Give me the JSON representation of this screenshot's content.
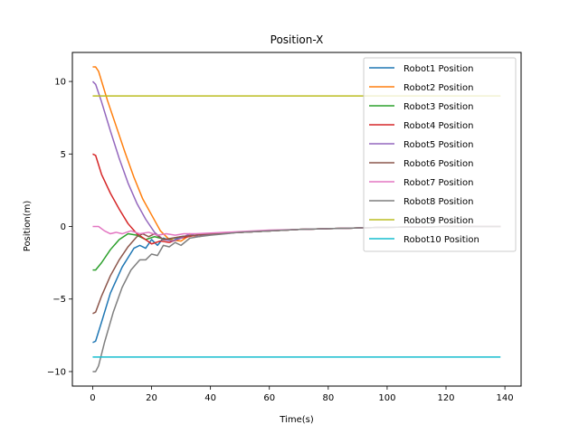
{
  "chart_data": {
    "type": "line",
    "title": "Position-X",
    "xlabel": "Time(s)",
    "ylabel": "Position(m)",
    "xlim": [
      -6.9,
      145.5
    ],
    "ylim": [
      -11,
      12
    ],
    "xticks": [
      0,
      20,
      40,
      60,
      80,
      100,
      120,
      140
    ],
    "yticks": [
      -10,
      -5,
      0,
      5,
      10
    ],
    "grid": false,
    "legend_position": "top-right",
    "series": [
      {
        "name": "Robot1 Position",
        "color": "#1f77b4",
        "points": [
          [
            0,
            -8
          ],
          [
            1,
            -7.9
          ],
          [
            3,
            -6.6
          ],
          [
            6,
            -4.6
          ],
          [
            10,
            -2.8
          ],
          [
            14,
            -1.5
          ],
          [
            16,
            -1.3
          ],
          [
            18,
            -1.5
          ],
          [
            20,
            -0.9
          ],
          [
            22,
            -1.3
          ],
          [
            24,
            -0.8
          ],
          [
            27,
            -1.0
          ],
          [
            30,
            -0.7
          ],
          [
            35,
            -0.6
          ],
          [
            40,
            -0.5
          ],
          [
            50,
            -0.4
          ],
          [
            60,
            -0.3
          ],
          [
            70,
            -0.2
          ],
          [
            80,
            -0.15
          ],
          [
            90,
            -0.1
          ],
          [
            100,
            -0.05
          ],
          [
            110,
            -0.03
          ],
          [
            120,
            -0.01
          ],
          [
            138.5,
            0
          ]
        ]
      },
      {
        "name": "Robot2 Position",
        "color": "#ff7f0e",
        "points": [
          [
            0,
            11
          ],
          [
            1,
            11
          ],
          [
            2,
            10.7
          ],
          [
            5,
            8.7
          ],
          [
            8,
            6.9
          ],
          [
            11,
            5.1
          ],
          [
            14,
            3.4
          ],
          [
            17,
            1.9
          ],
          [
            20,
            0.8
          ],
          [
            23,
            -0.3
          ],
          [
            26,
            -0.9
          ],
          [
            30,
            -1.0
          ],
          [
            33,
            -0.6
          ],
          [
            36,
            -0.7
          ],
          [
            40,
            -0.5
          ],
          [
            50,
            -0.4
          ],
          [
            60,
            -0.3
          ],
          [
            70,
            -0.2
          ],
          [
            80,
            -0.15
          ],
          [
            90,
            -0.1
          ],
          [
            100,
            -0.05
          ],
          [
            110,
            -0.03
          ],
          [
            120,
            -0.01
          ],
          [
            138.5,
            0
          ]
        ]
      },
      {
        "name": "Robot3 Position",
        "color": "#2ca02c",
        "points": [
          [
            0,
            -3
          ],
          [
            1,
            -3
          ],
          [
            3,
            -2.5
          ],
          [
            6,
            -1.6
          ],
          [
            9,
            -0.9
          ],
          [
            12,
            -0.5
          ],
          [
            15,
            -0.6
          ],
          [
            18,
            -0.9
          ],
          [
            21,
            -0.7
          ],
          [
            25,
            -0.9
          ],
          [
            30,
            -0.7
          ],
          [
            35,
            -0.6
          ],
          [
            40,
            -0.5
          ],
          [
            50,
            -0.4
          ],
          [
            60,
            -0.3
          ],
          [
            70,
            -0.2
          ],
          [
            80,
            -0.15
          ],
          [
            90,
            -0.1
          ],
          [
            100,
            -0.05
          ],
          [
            110,
            -0.03
          ],
          [
            120,
            -0.01
          ],
          [
            138.5,
            0
          ]
        ]
      },
      {
        "name": "Robot4 Position",
        "color": "#d62728",
        "points": [
          [
            0,
            5
          ],
          [
            1,
            4.9
          ],
          [
            3,
            3.6
          ],
          [
            6,
            2.3
          ],
          [
            9,
            1.2
          ],
          [
            12,
            0.2
          ],
          [
            15,
            -0.5
          ],
          [
            18,
            -0.9
          ],
          [
            20,
            -1.2
          ],
          [
            23,
            -1.0
          ],
          [
            26,
            -1.1
          ],
          [
            30,
            -0.8
          ],
          [
            35,
            -0.6
          ],
          [
            40,
            -0.5
          ],
          [
            50,
            -0.4
          ],
          [
            60,
            -0.3
          ],
          [
            70,
            -0.2
          ],
          [
            80,
            -0.15
          ],
          [
            90,
            -0.1
          ],
          [
            100,
            -0.05
          ],
          [
            110,
            -0.03
          ],
          [
            120,
            -0.01
          ],
          [
            138.5,
            0
          ]
        ]
      },
      {
        "name": "Robot5 Position",
        "color": "#9467bd",
        "points": [
          [
            0,
            10
          ],
          [
            1,
            9.8
          ],
          [
            3,
            8.6
          ],
          [
            6,
            6.6
          ],
          [
            9,
            4.7
          ],
          [
            12,
            3.0
          ],
          [
            15,
            1.6
          ],
          [
            18,
            0.5
          ],
          [
            21,
            -0.4
          ],
          [
            24,
            -0.9
          ],
          [
            27,
            -1.0
          ],
          [
            30,
            -0.8
          ],
          [
            33,
            -0.5
          ],
          [
            36,
            -0.7
          ],
          [
            40,
            -0.5
          ],
          [
            50,
            -0.4
          ],
          [
            60,
            -0.3
          ],
          [
            70,
            -0.2
          ],
          [
            80,
            -0.15
          ],
          [
            90,
            -0.1
          ],
          [
            100,
            -0.05
          ],
          [
            110,
            -0.03
          ],
          [
            120,
            -0.01
          ],
          [
            138.5,
            0
          ]
        ]
      },
      {
        "name": "Robot6 Position",
        "color": "#8c564b",
        "points": [
          [
            0,
            -6
          ],
          [
            1,
            -5.9
          ],
          [
            3,
            -4.8
          ],
          [
            6,
            -3.4
          ],
          [
            9,
            -2.3
          ],
          [
            12,
            -1.4
          ],
          [
            15,
            -0.7
          ],
          [
            17,
            -0.5
          ],
          [
            19,
            -0.7
          ],
          [
            21,
            -0.5
          ],
          [
            24,
            -0.9
          ],
          [
            27,
            -0.8
          ],
          [
            30,
            -0.7
          ],
          [
            35,
            -0.6
          ],
          [
            40,
            -0.5
          ],
          [
            50,
            -0.4
          ],
          [
            60,
            -0.3
          ],
          [
            70,
            -0.2
          ],
          [
            80,
            -0.15
          ],
          [
            90,
            -0.1
          ],
          [
            100,
            -0.05
          ],
          [
            110,
            -0.03
          ],
          [
            120,
            -0.01
          ],
          [
            138.5,
            0
          ]
        ]
      },
      {
        "name": "Robot7 Position",
        "color": "#e377c2",
        "points": [
          [
            0,
            0
          ],
          [
            2,
            0
          ],
          [
            4,
            -0.3
          ],
          [
            6,
            -0.5
          ],
          [
            8,
            -0.4
          ],
          [
            10,
            -0.5
          ],
          [
            13,
            -0.3
          ],
          [
            16,
            -0.5
          ],
          [
            19,
            -0.4
          ],
          [
            22,
            -0.6
          ],
          [
            25,
            -0.5
          ],
          [
            28,
            -0.6
          ],
          [
            31,
            -0.5
          ],
          [
            35,
            -0.5
          ],
          [
            40,
            -0.45
          ],
          [
            50,
            -0.35
          ],
          [
            60,
            -0.25
          ],
          [
            70,
            -0.2
          ],
          [
            80,
            -0.15
          ],
          [
            90,
            -0.1
          ],
          [
            100,
            -0.05
          ],
          [
            110,
            -0.03
          ],
          [
            120,
            -0.01
          ],
          [
            138.5,
            0
          ]
        ]
      },
      {
        "name": "Robot8 Position",
        "color": "#7f7f7f",
        "points": [
          [
            0,
            -10
          ],
          [
            1,
            -10
          ],
          [
            2,
            -9.6
          ],
          [
            4,
            -8.0
          ],
          [
            7,
            -5.9
          ],
          [
            10,
            -4.2
          ],
          [
            13,
            -3.0
          ],
          [
            16,
            -2.3
          ],
          [
            18,
            -2.3
          ],
          [
            20,
            -1.9
          ],
          [
            22,
            -2.0
          ],
          [
            24,
            -1.3
          ],
          [
            26,
            -1.4
          ],
          [
            28,
            -1.1
          ],
          [
            30,
            -1.3
          ],
          [
            33,
            -0.8
          ],
          [
            36,
            -0.7
          ],
          [
            40,
            -0.6
          ],
          [
            50,
            -0.4
          ],
          [
            60,
            -0.3
          ],
          [
            70,
            -0.2
          ],
          [
            80,
            -0.15
          ],
          [
            90,
            -0.1
          ],
          [
            100,
            -0.05
          ],
          [
            110,
            -0.03
          ],
          [
            120,
            -0.01
          ],
          [
            138.5,
            0
          ]
        ]
      },
      {
        "name": "Robot9 Position",
        "color": "#bcbd22",
        "points": [
          [
            0,
            9
          ],
          [
            138.5,
            9
          ]
        ]
      },
      {
        "name": "Robot10 Position",
        "color": "#17becf",
        "points": [
          [
            0,
            -9
          ],
          [
            138.5,
            -9
          ]
        ]
      }
    ]
  }
}
